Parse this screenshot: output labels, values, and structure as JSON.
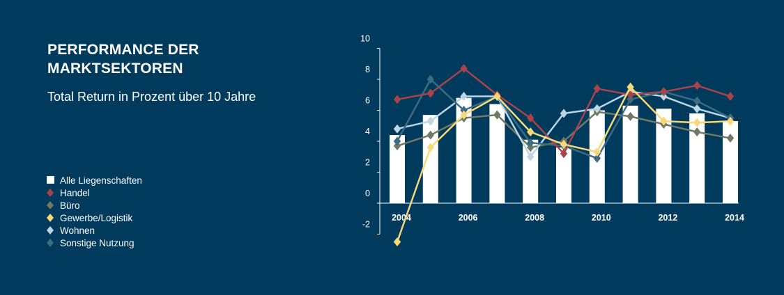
{
  "title": "PERFORMANCE DER MARKTSEKTOREN",
  "subtitle": "Total Return in Prozent über 10 Jahre",
  "colors": {
    "background": "#003a5c",
    "Alle Liegenschaften": "#ffffff",
    "Handel": "#a84449",
    "Büro": "#6f7a64",
    "Gewerbe/Logistik": "#f7d97a",
    "Wohnen": "#bcd6e6",
    "Sonstige Nutzung": "#3d6b7f"
  },
  "legend": [
    {
      "name": "Alle Liegenschaften",
      "marker": "square"
    },
    {
      "name": "Handel",
      "marker": "diamond"
    },
    {
      "name": "Büro",
      "marker": "diamond"
    },
    {
      "name": "Gewerbe/Logistik",
      "marker": "diamond"
    },
    {
      "name": "Wohnen",
      "marker": "diamond"
    },
    {
      "name": "Sonstige Nutzung",
      "marker": "diamond"
    }
  ],
  "chart_data": {
    "type": "bar",
    "title": "PERFORMANCE DER MARKTSEKTOREN",
    "subtitle": "Total Return in Prozent über 10 Jahre",
    "x": [
      2004,
      2005,
      2006,
      2007,
      2008,
      2009,
      2010,
      2011,
      2012,
      2013,
      2014
    ],
    "x_tick_labels": [
      "2004",
      "2006",
      "2008",
      "2010",
      "2012",
      "2014"
    ],
    "y_tick_labels": [
      "-2",
      "0",
      "2",
      "4",
      "6",
      "8",
      "10"
    ],
    "ylim": [
      -2,
      10
    ],
    "grid": false,
    "legend_position": "left",
    "series": [
      {
        "name": "Alle Liegenschaften",
        "type": "bar",
        "values": [
          4.4,
          5.7,
          6.8,
          6.4,
          4.1,
          3.6,
          6.0,
          6.3,
          6.1,
          5.8,
          5.3
        ]
      },
      {
        "name": "Handel",
        "type": "line",
        "values": [
          6.7,
          7.1,
          8.7,
          7.0,
          5.5,
          3.2,
          7.4,
          7.0,
          7.2,
          7.6,
          6.9
        ]
      },
      {
        "name": "Büro",
        "type": "line",
        "values": [
          3.7,
          4.4,
          5.5,
          5.7,
          3.6,
          4.0,
          5.9,
          5.6,
          5.1,
          4.6,
          4.2
        ]
      },
      {
        "name": "Gewerbe/Logistik",
        "type": "line",
        "values": [
          -2.5,
          3.6,
          5.7,
          6.9,
          4.6,
          3.8,
          3.3,
          7.5,
          5.3,
          5.2,
          5.3
        ]
      },
      {
        "name": "Wohnen",
        "type": "line",
        "values": [
          4.8,
          5.3,
          6.9,
          6.9,
          3.0,
          5.8,
          6.1,
          7.2,
          6.9,
          6.1,
          5.5
        ]
      },
      {
        "name": "Sonstige Nutzung",
        "type": "line",
        "values": [
          4.0,
          8.0,
          6.0,
          6.9,
          3.9,
          3.7,
          2.9,
          6.7,
          7.2,
          6.6,
          5.5
        ]
      }
    ]
  }
}
